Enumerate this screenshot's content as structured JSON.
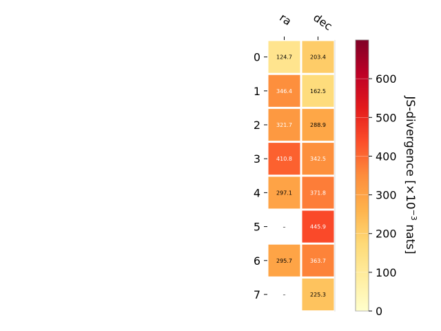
{
  "chart_data": {
    "type": "heatmap",
    "columns": [
      "ra",
      "dec"
    ],
    "rows": [
      "0",
      "1",
      "2",
      "3",
      "4",
      "5",
      "6",
      "7"
    ],
    "values": [
      [
        124.7,
        203.4
      ],
      [
        346.4,
        162.5
      ],
      [
        321.7,
        288.9
      ],
      [
        410.8,
        342.5
      ],
      [
        297.1,
        371.8
      ],
      [
        null,
        445.9
      ],
      [
        295.7,
        363.7
      ],
      [
        null,
        225.3
      ]
    ],
    "cell_labels": [
      [
        "124.7",
        "203.4"
      ],
      [
        "346.4",
        "162.5"
      ],
      [
        "321.7",
        "288.9"
      ],
      [
        "410.8",
        "342.5"
      ],
      [
        "297.1",
        "371.8"
      ],
      [
        "–",
        "445.9"
      ],
      [
        "295.7",
        "363.7"
      ],
      [
        "–",
        "225.3"
      ]
    ],
    "colorbar": {
      "label_main": "JS-divergence [×10",
      "label_exp": "−3",
      "label_tail": " nats]",
      "min": 0,
      "max": 700,
      "ticks": [
        0,
        100,
        200,
        300,
        400,
        500,
        600
      ],
      "tick_labels": [
        "0",
        "100",
        "200",
        "300",
        "400",
        "500",
        "600"
      ],
      "colormap": "YlOrRd"
    }
  }
}
